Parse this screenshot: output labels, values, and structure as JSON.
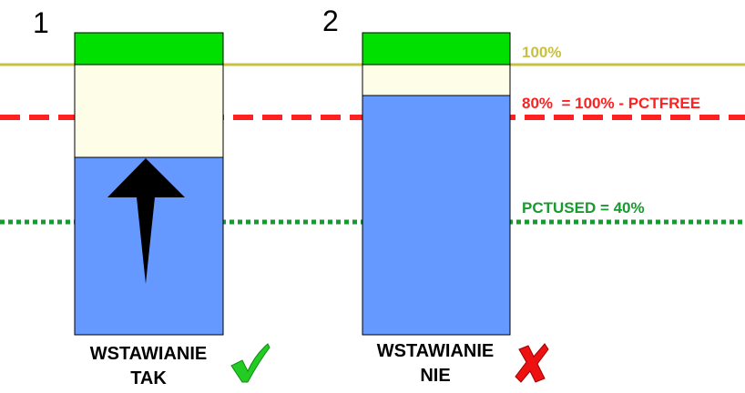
{
  "blocks": [
    {
      "number": "1",
      "caption": [
        "WSTAWIANIE",
        "TAK"
      ]
    },
    {
      "number": "2",
      "caption": [
        "WSTAWIANIE",
        "NIE"
      ]
    }
  ],
  "levels": {
    "full": "100%",
    "pctfree": "80%  = 100% - PCTFREE",
    "pctused": "PCTUSED = 40%"
  }
}
